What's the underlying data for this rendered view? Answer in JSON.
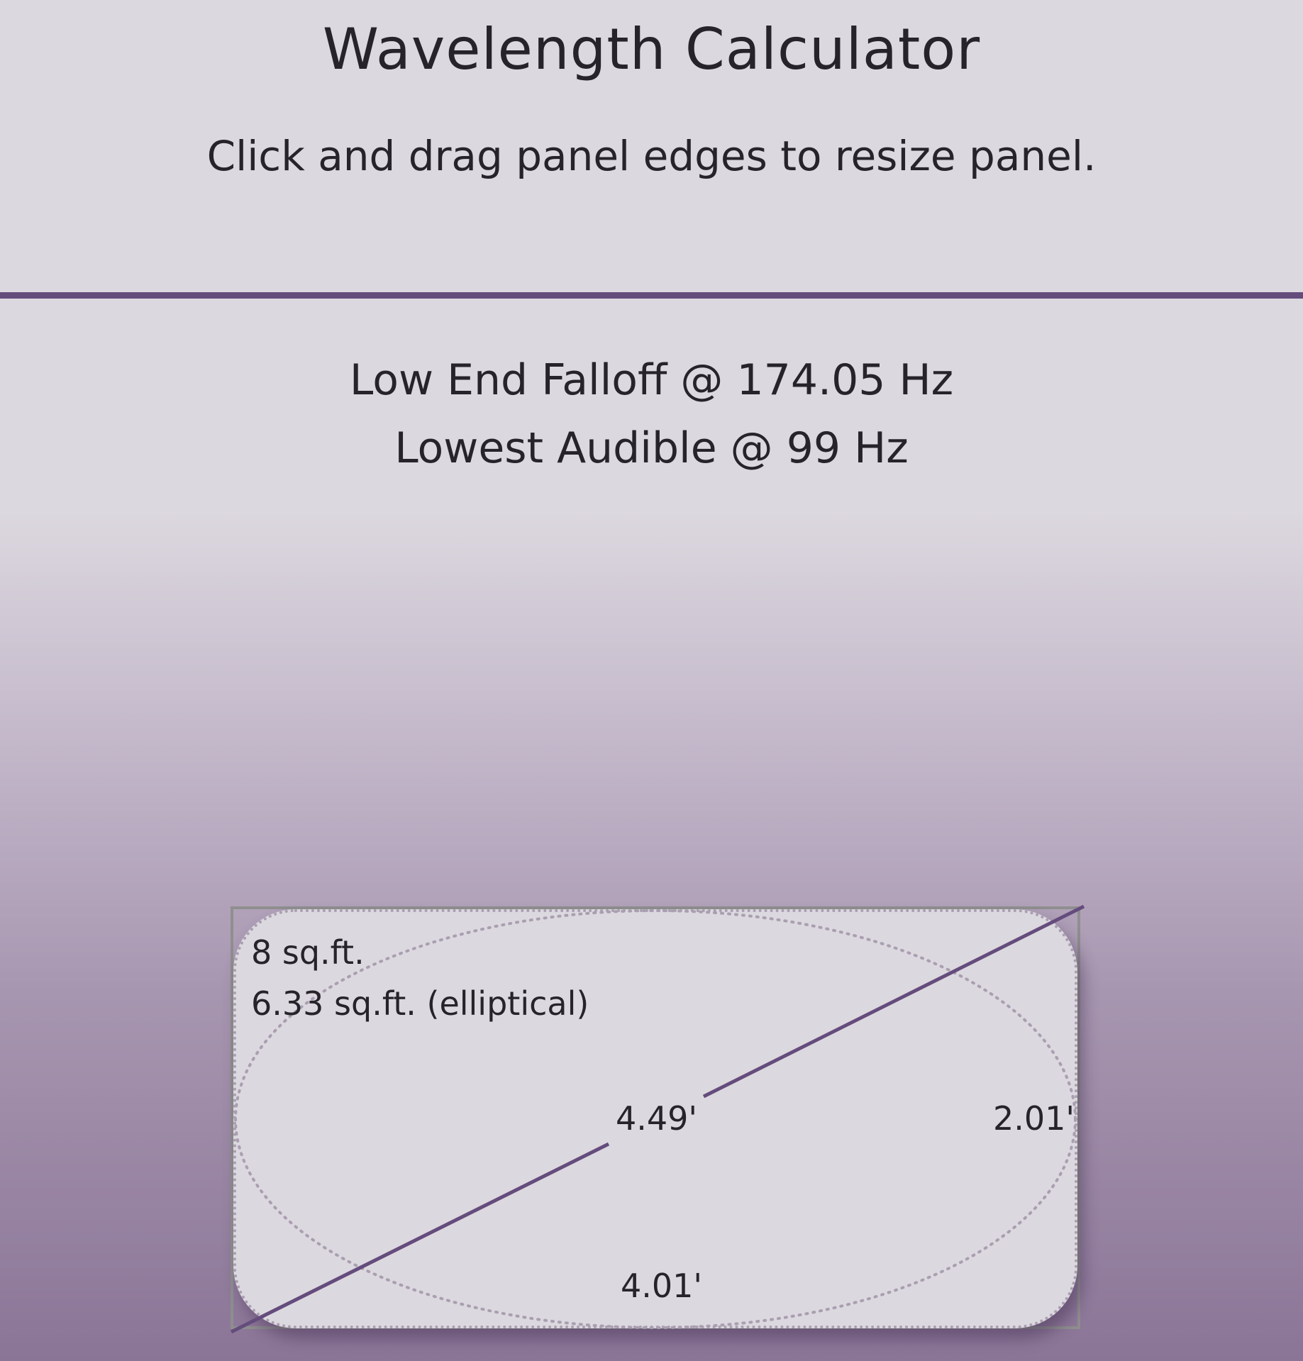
{
  "header": {
    "title": "Wavelength Calculator",
    "instruction": "Click and drag panel edges to resize panel."
  },
  "results": {
    "low_end_falloff": "Low End Falloff @ 174.05 Hz",
    "lowest_audible": "Lowest Audible @ 99 Hz"
  },
  "panel": {
    "area_rect": "8 sq.ft.",
    "area_elliptical": "6.33 sq.ft. (elliptical)",
    "diagonal": "4.49'",
    "height": "2.01'",
    "width": "4.01'"
  },
  "colors": {
    "accent": "#644c7c",
    "panel_fill": "#dcd8df",
    "bbox_stroke": "#8f8f8f",
    "ellipse_stroke": "#a99fb0",
    "text": "#26232b"
  }
}
